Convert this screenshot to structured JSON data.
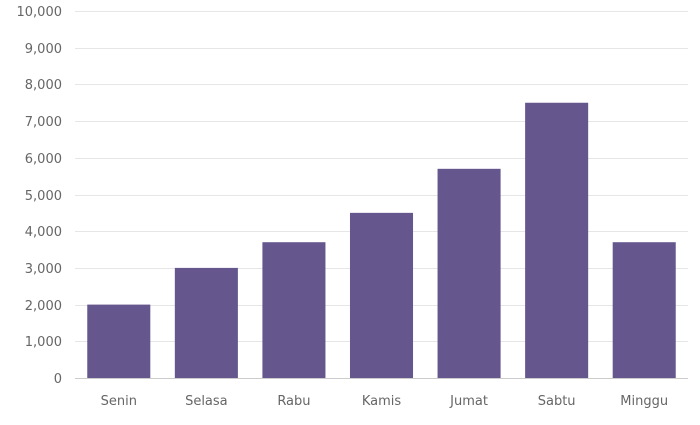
{
  "chart_data": {
    "type": "bar",
    "categories": [
      "Senin",
      "Selasa",
      "Rabu",
      "Kamis",
      "Jumat",
      "Sabtu",
      "Minggu"
    ],
    "values": [
      2000,
      3000,
      3700,
      4500,
      5700,
      7500,
      3700
    ],
    "title": "",
    "xlabel": "",
    "ylabel": "",
    "ylim": [
      0,
      10000
    ],
    "yticks": [
      0,
      1000,
      2000,
      3000,
      4000,
      5000,
      6000,
      7000,
      8000,
      9000,
      10000
    ],
    "ytick_labels": [
      "0",
      "1,000",
      "2,000",
      "3,000",
      "4,000",
      "5,000",
      "6,000",
      "7,000",
      "8,000",
      "9,000",
      "10,000"
    ],
    "grid": true,
    "legend": "none",
    "bar_color": "#65568e",
    "grid_color": "#e6e6e6",
    "axis_color": "#cccccc",
    "label_color": "#666666"
  }
}
